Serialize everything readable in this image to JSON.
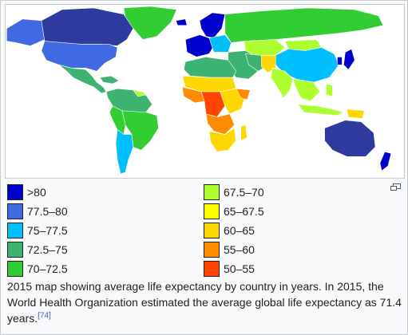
{
  "legend": {
    "columns": [
      [
        {
          "label": ">80",
          "color": "#0000cd"
        },
        {
          "label": "77.5–80",
          "color": "#4169e1"
        },
        {
          "label": "75–77.5",
          "color": "#00bfff"
        },
        {
          "label": "72.5–75",
          "color": "#3cb371"
        },
        {
          "label": "70–72.5",
          "color": "#32cd32"
        }
      ],
      [
        {
          "label": "67.5–70",
          "color": "#adff2f"
        },
        {
          "label": "65–67.5",
          "color": "#ffff00"
        },
        {
          "label": "60–65",
          "color": "#ffd700"
        },
        {
          "label": "55–60",
          "color": "#ff8c00"
        },
        {
          "label": "50–55",
          "color": "#ff4500"
        }
      ]
    ]
  },
  "caption": {
    "text": "2015 map showing average life expectancy by country in years. In 2015, the World Health Organization estimated the average global life expectancy as 71.4 years.",
    "ref": "[74]"
  },
  "icons": {
    "enlarge": "enlarge-icon"
  }
}
